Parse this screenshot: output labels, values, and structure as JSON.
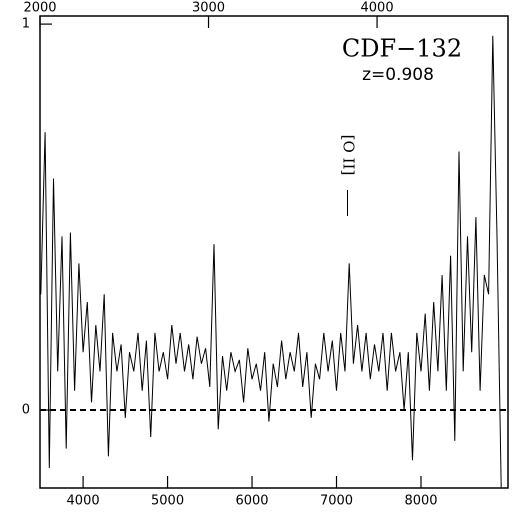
{
  "chart_data": {
    "type": "line",
    "annotations": [
      {
        "text": "CDF−132"
      },
      {
        "text": "z=0.908"
      }
    ],
    "line_annotation": {
      "text": "[O II]",
      "x": 7130
    },
    "x": [
      3500,
      3550,
      3600,
      3650,
      3700,
      3750,
      3800,
      3850,
      3900,
      3950,
      4000,
      4050,
      4100,
      4150,
      4200,
      4250,
      4300,
      4350,
      4400,
      4450,
      4500,
      4550,
      4600,
      4650,
      4700,
      4750,
      4800,
      4850,
      4900,
      4950,
      5000,
      5050,
      5100,
      5150,
      5200,
      5250,
      5300,
      5350,
      5400,
      5450,
      5500,
      5550,
      5600,
      5650,
      5700,
      5750,
      5800,
      5850,
      5900,
      5950,
      6000,
      6050,
      6100,
      6150,
      6200,
      6250,
      6300,
      6350,
      6400,
      6450,
      6500,
      6550,
      6600,
      6650,
      6700,
      6750,
      6800,
      6850,
      6900,
      6950,
      7000,
      7050,
      7100,
      7150,
      7200,
      7250,
      7300,
      7350,
      7400,
      7450,
      7500,
      7550,
      7600,
      7650,
      7700,
      7750,
      7800,
      7850,
      7900,
      7950,
      8000,
      8050,
      8100,
      8150,
      8200,
      8250,
      8300,
      8350,
      8400,
      8450,
      8500,
      8550,
      8600,
      8650,
      8700,
      8750,
      8800,
      8850,
      8900,
      8950
    ],
    "values": [
      0.3,
      0.72,
      -0.15,
      0.6,
      0.1,
      0.45,
      -0.1,
      0.46,
      0.05,
      0.38,
      0.15,
      0.28,
      0.02,
      0.22,
      0.1,
      0.3,
      -0.12,
      0.2,
      0.1,
      0.17,
      -0.02,
      0.15,
      0.1,
      0.2,
      0.05,
      0.18,
      -0.07,
      0.2,
      0.1,
      0.15,
      0.08,
      0.22,
      0.12,
      0.2,
      0.1,
      0.17,
      0.08,
      0.19,
      0.12,
      0.16,
      0.06,
      0.43,
      -0.05,
      0.14,
      0.05,
      0.15,
      0.1,
      0.13,
      0.02,
      0.16,
      0.08,
      0.12,
      0.05,
      0.15,
      -0.03,
      0.12,
      0.06,
      0.18,
      0.08,
      0.15,
      0.1,
      0.2,
      0.06,
      0.15,
      -0.02,
      0.12,
      0.08,
      0.2,
      0.1,
      0.18,
      0.05,
      0.2,
      0.1,
      0.38,
      0.12,
      0.22,
      0.1,
      0.2,
      0.08,
      0.17,
      0.1,
      0.2,
      0.05,
      0.2,
      0.1,
      0.15,
      0.0,
      0.15,
      -0.13,
      0.2,
      0.1,
      0.25,
      0.05,
      0.28,
      0.1,
      0.35,
      0.05,
      0.4,
      -0.08,
      0.67,
      0.1,
      0.45,
      0.15,
      0.5,
      0.05,
      0.35,
      0.3,
      0.97,
      0.45,
      -0.2
    ],
    "color": "#000000",
    "xlim": [
      3490,
      9030
    ],
    "xticks": [
      4000,
      5000,
      6000,
      7000,
      8000
    ],
    "x2lim": [
      2000,
      4777
    ],
    "x2ticks": [
      2000,
      3000,
      4000
    ],
    "ylim": [
      -0.202,
      1.021
    ],
    "yticks": [
      0,
      1
    ],
    "hlines": [
      0
    ]
  }
}
